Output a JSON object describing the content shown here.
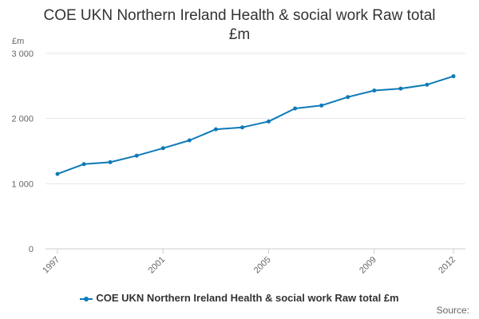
{
  "chart_data": {
    "type": "line",
    "title": "COE UKN Northern Ireland Health & social work Raw total £m",
    "ylabel": "£m",
    "xlabel": "",
    "x": [
      1997,
      1998,
      1999,
      2000,
      2001,
      2002,
      2003,
      2004,
      2005,
      2006,
      2007,
      2008,
      2009,
      2010,
      2011,
      2012
    ],
    "xticks": [
      "1997",
      "2001",
      "2005",
      "2009",
      "2012"
    ],
    "yticks": [
      "0",
      "1 000",
      "2 000",
      "3 000"
    ],
    "ylim": [
      0,
      3000
    ],
    "grid": true,
    "legend_position": "bottom",
    "series": [
      {
        "name": "COE UKN Northern Ireland Health & social work Raw total £m",
        "color": "#0d7ab8",
        "values": [
          1150,
          1300,
          1330,
          1430,
          1545,
          1665,
          1835,
          1865,
          1955,
          2155,
          2200,
          2330,
          2430,
          2460,
          2520,
          2650
        ]
      }
    ]
  },
  "source_label": "Source:"
}
